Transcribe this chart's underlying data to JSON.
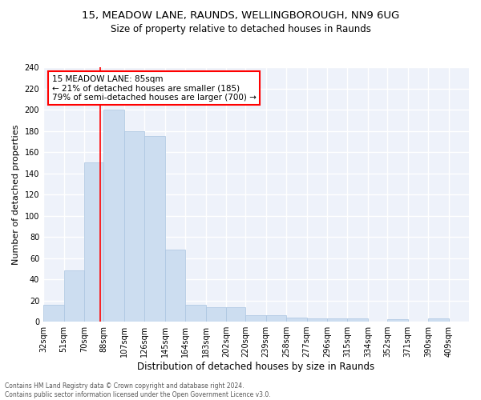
{
  "title1": "15, MEADOW LANE, RAUNDS, WELLINGBOROUGH, NN9 6UG",
  "title2": "Size of property relative to detached houses in Raunds",
  "xlabel": "Distribution of detached houses by size in Raunds",
  "ylabel": "Number of detached properties",
  "bar_color": "#ccddf0",
  "bar_edge_color": "#aac4e0",
  "annotation_box_text": "15 MEADOW LANE: 85sqm\n← 21% of detached houses are smaller (185)\n79% of semi-detached houses are larger (700) →",
  "annotation_box_color": "white",
  "annotation_box_edge_color": "red",
  "vline_x": 85,
  "vline_color": "red",
  "footer_text": "Contains HM Land Registry data © Crown copyright and database right 2024.\nContains public sector information licensed under the Open Government Licence v3.0.",
  "categories": [
    "32sqm",
    "51sqm",
    "70sqm",
    "88sqm",
    "107sqm",
    "126sqm",
    "145sqm",
    "164sqm",
    "183sqm",
    "202sqm",
    "220sqm",
    "239sqm",
    "258sqm",
    "277sqm",
    "296sqm",
    "315sqm",
    "334sqm",
    "352sqm",
    "371sqm",
    "390sqm",
    "409sqm"
  ],
  "values": [
    16,
    48,
    150,
    200,
    180,
    175,
    68,
    16,
    14,
    14,
    6,
    6,
    4,
    3,
    3,
    3,
    0,
    2,
    0,
    3,
    0
  ],
  "bin_edges": [
    32,
    51,
    70,
    88,
    107,
    126,
    145,
    164,
    183,
    202,
    220,
    239,
    258,
    277,
    296,
    315,
    334,
    352,
    371,
    390,
    409,
    428
  ],
  "ylim": [
    0,
    240
  ],
  "yticks": [
    0,
    20,
    40,
    60,
    80,
    100,
    120,
    140,
    160,
    180,
    200,
    220,
    240
  ],
  "background_color": "#eef2fa",
  "grid_color": "white",
  "title1_fontsize": 9.5,
  "title2_fontsize": 8.5,
  "xlabel_fontsize": 8.5,
  "ylabel_fontsize": 8,
  "tick_fontsize": 7,
  "footer_fontsize": 5.5,
  "annot_fontsize": 7.5
}
